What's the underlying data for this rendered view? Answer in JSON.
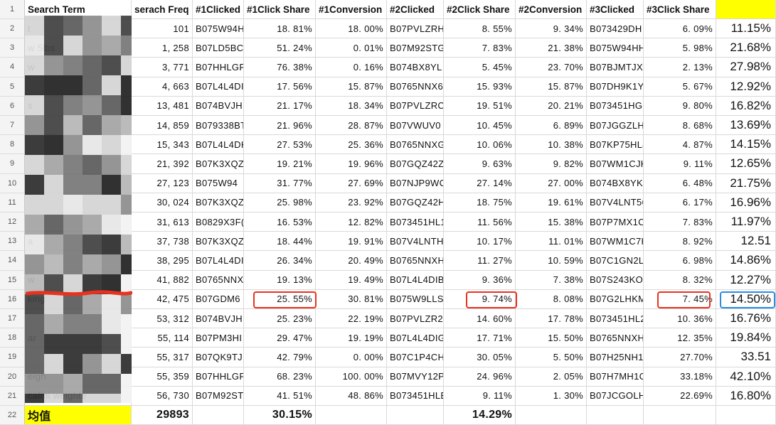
{
  "headers": [
    "Search Term",
    "serach Freq",
    "#1Clicked",
    "#1Click Share",
    "#1Conversion",
    "#2Clicked",
    "#2Click Share",
    "#2Conversion",
    "#3Clicked",
    "#3Click Share",
    ""
  ],
  "rows": [
    {
      "n": "2",
      "term": "t",
      "freq": "101",
      "c1": "B075W94H",
      "s1": "18. 81%",
      "v1": "18. 00%",
      "c2": "B07PVLZRH",
      "s2": "8. 55%",
      "v2": "9. 34%",
      "c3": "B073429DH",
      "s3": "6. 09%",
      "k": "11.15%"
    },
    {
      "n": "3",
      "term": "w 5lbs",
      "freq": "1, 258",
      "c1": "B07LD5BC",
      "s1": "51. 24%",
      "v1": "0. 01%",
      "c2": "B07M92STG",
      "s2": "7. 83%",
      "v2": "21. 38%",
      "c3": "B075W94HH",
      "s3": "5. 98%",
      "k": "21.68%"
    },
    {
      "n": "4",
      "term": "w",
      "freq": "3, 771",
      "c1": "B07HHLGF",
      "s1": "76. 38%",
      "v1": "0. 16%",
      "c2": "B074BX8YL",
      "s2": "5. 45%",
      "v2": "23. 70%",
      "c3": "B07BJMTJX",
      "s3": "2. 13%",
      "k": "27.98%"
    },
    {
      "n": "5",
      "term": "",
      "freq": "4, 663",
      "c1": "B07L4L4DI",
      "s1": "17. 56%",
      "v1": "15. 87%",
      "c2": "B0765NNX6",
      "s2": "15. 93%",
      "v2": "15. 87%",
      "c3": "B07DH9K1Y",
      "s3": "5. 67%",
      "k": "12.92%"
    },
    {
      "n": "6",
      "term": "s",
      "freq": "13, 481",
      "c1": "B074BVJH",
      "s1": "21. 17%",
      "v1": "18. 34%",
      "c2": "B07PVLZRC",
      "s2": "19. 51%",
      "v2": "20. 21%",
      "c3": "B073451HGI",
      "s3": "9. 80%",
      "k": "16.82%"
    },
    {
      "n": "7",
      "term": "",
      "freq": "14, 859",
      "c1": "B079338BT",
      "s1": "21. 96%",
      "v1": "28. 87%",
      "c2": "B07VWUV0",
      "s2": "10. 45%",
      "v2": "6. 89%",
      "c3": "B07JGGZLH",
      "s3": "8. 68%",
      "k": "13.69%"
    },
    {
      "n": "8",
      "term": "",
      "freq": "15, 343",
      "c1": "B07L4L4DH",
      "s1": "27. 53%",
      "v1": "25. 36%",
      "c2": "B0765NNXG",
      "s2": "10. 06%",
      "v2": "10. 38%",
      "c3": "B07KP75HL4",
      "s3": "4. 87%",
      "k": "14.15%"
    },
    {
      "n": "9",
      "term": "",
      "freq": "21, 392",
      "c1": "B07K3XQZ",
      "s1": "19. 21%",
      "v1": "19. 96%",
      "c2": "B07GQZ42Z",
      "s2": "9. 63%",
      "v2": "9. 82%",
      "c3": "B07WM1CJK",
      "s3": "9. 11%",
      "k": "12.65%"
    },
    {
      "n": "10",
      "term": "",
      "freq": "27, 123",
      "c1": "B075W94",
      "s1": "31. 77%",
      "v1": "27. 69%",
      "c2": "B07NJP9WC",
      "s2": "27. 14%",
      "v2": "27. 00%",
      "c3": "B074BX8YKI",
      "s3": "6. 48%",
      "k": "21.75%"
    },
    {
      "n": "11",
      "term": "",
      "freq": "30, 024",
      "c1": "B07K3XQZ",
      "s1": "25. 98%",
      "v1": "23. 92%",
      "c2": "B07GQZ42H",
      "s2": "18. 75%",
      "v2": "19. 61%",
      "c3": "B07V4LNT56",
      "s3": "6. 17%",
      "k": "16.96%"
    },
    {
      "n": "12",
      "term": "",
      "freq": "31, 613",
      "c1": "B0829X3F(",
      "s1": "16. 53%",
      "v1": "12. 82%",
      "c2": "B073451HL1",
      "s2": "11. 56%",
      "v2": "15. 38%",
      "c3": "B07P7MX1C",
      "s3": "7. 83%",
      "k": "11.97%"
    },
    {
      "n": "13",
      "term": "a",
      "freq": "37, 738",
      "c1": "B07K3XQZ",
      "s1": "18. 44%",
      "v1": "19. 91%",
      "c2": "B07V4LNTH",
      "s2": "10. 17%",
      "v2": "11. 01%",
      "c3": "B07WM1C7H",
      "s3": "8. 92%",
      "k": "12.51"
    },
    {
      "n": "14",
      "term": "",
      "freq": "38, 295",
      "c1": "B07L4L4DI",
      "s1": "26. 34%",
      "v1": "20. 49%",
      "c2": "B0765NNXH",
      "s2": "11. 27%",
      "v2": "10. 59%",
      "c3": "B07C1GN2L",
      "s3": "6. 98%",
      "k": "14.86%"
    },
    {
      "n": "15",
      "term": "w",
      "freq": "41, 882",
      "c1": "B0765NNX",
      "s1": "19. 13%",
      "v1": "19. 49%",
      "c2": "B07L4L4DIB",
      "s2": "9. 36%",
      "v2": "7. 38%",
      "c3": "B07S243KO",
      "s3": "8. 32%",
      "k": "12.27%"
    },
    {
      "n": "16",
      "term": "king",
      "freq": "42, 475",
      "c1": "B07GDM6",
      "s1": "25. 55%",
      "v1": "30. 81%",
      "c2": "B075W9LLS",
      "s2": "9. 74%",
      "v2": "8. 08%",
      "c3": "B07G2LHKM",
      "s3": "7. 45%",
      "k": "14.50%"
    },
    {
      "n": "17",
      "term": "",
      "freq": "53, 312",
      "c1": "B074BVJH",
      "s1": "25. 23%",
      "v1": "22. 19%",
      "c2": "B07PVLZR2",
      "s2": "14. 60%",
      "v2": "17. 78%",
      "c3": "B073451HL2",
      "s3": "10. 36%",
      "k": "16.76%"
    },
    {
      "n": "18",
      "term": "ar",
      "freq": "55, 114",
      "c1": "B07PM3HI",
      "s1": "29. 47%",
      "v1": "19. 19%",
      "c2": "B07L4L4DIG",
      "s2": "17. 71%",
      "v2": "15. 50%",
      "c3": "B0765NNXH",
      "s3": "12. 35%",
      "k": "19.84%"
    },
    {
      "n": "19",
      "term": "",
      "freq": "55, 317",
      "c1": "B07QK9TJ",
      "s1": "42. 79%",
      "v1": "0. 00%",
      "c2": "B07C1P4CH",
      "s2": "30. 05%",
      "v2": "5. 50%",
      "c3": "B07H25NH1",
      "s3": "27.70%",
      "k": "33.51"
    },
    {
      "n": "20",
      "term": "eigh",
      "freq": "55, 359",
      "c1": "B07HHLGF",
      "s1": "68. 23%",
      "v1": "100. 00%",
      "c2": "B07MVY12P",
      "s2": "24. 96%",
      "v2": "2. 05%",
      "c3": "B07H7MH1C",
      "s3": "33.18%",
      "k": "42.10%"
    },
    {
      "n": "21",
      "term": "calmi weighte",
      "freq": "56, 730",
      "c1": "B07M92ST",
      "s1": "41. 51%",
      "v1": "48. 86%",
      "c2": "B073451HLE",
      "s2": "9. 11%",
      "v2": "1. 30%",
      "c3": "B07JCGOLH",
      "s3": "22.69%",
      "k": "16.80%"
    }
  ],
  "totals": {
    "n": "22",
    "label": "均值",
    "freq": "29893",
    "s1": "30.15%",
    "s2": "14.29%"
  },
  "header_row_num": "1",
  "colors": {
    "yellow": "#ffff00",
    "mark_red": "#e8321f",
    "mark_blue": "#2a8de0"
  }
}
